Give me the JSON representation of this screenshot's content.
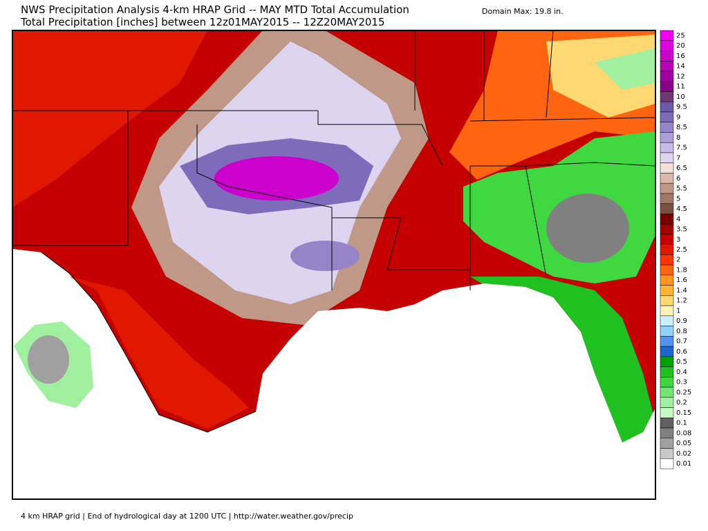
{
  "header": {
    "title": "NWS Precipitation Analysis 4-km HRAP Grid -- MAY MTD Total Accumulation",
    "subtitle": "Total Precipitation [inches] between 12z01MAY2015 -- 12Z20MAY2015",
    "domain_max": "Domain Max:  19.8 in."
  },
  "legend": {
    "items": [
      {
        "label": "25",
        "color": "#f000f0"
      },
      {
        "label": "20",
        "color": "#e000e0"
      },
      {
        "label": "16",
        "color": "#cc00cc"
      },
      {
        "label": "14",
        "color": "#b800b8"
      },
      {
        "label": "12",
        "color": "#a000a0"
      },
      {
        "label": "11",
        "color": "#880088"
      },
      {
        "label": "10",
        "color": "#703870"
      },
      {
        "label": "9.5",
        "color": "#6a5aa8"
      },
      {
        "label": "9",
        "color": "#7e6cba"
      },
      {
        "label": "8.5",
        "color": "#9684c8"
      },
      {
        "label": "8",
        "color": "#ae9ed8"
      },
      {
        "label": "7.5",
        "color": "#c6bae6"
      },
      {
        "label": "7",
        "color": "#ddd4f0"
      },
      {
        "label": "6.5",
        "color": "#f0e0d8"
      },
      {
        "label": "6",
        "color": "#d8b8a8"
      },
      {
        "label": "5.5",
        "color": "#c09888"
      },
      {
        "label": "5",
        "color": "#a07868"
      },
      {
        "label": "4.5",
        "color": "#7a5040"
      },
      {
        "label": "4",
        "color": "#780000"
      },
      {
        "label": "3.5",
        "color": "#a00000"
      },
      {
        "label": "3",
        "color": "#c40000"
      },
      {
        "label": "2.5",
        "color": "#e01800"
      },
      {
        "label": "2",
        "color": "#ff3400"
      },
      {
        "label": "1.8",
        "color": "#ff6410"
      },
      {
        "label": "1.6",
        "color": "#ff9420"
      },
      {
        "label": "1.4",
        "color": "#ffb434"
      },
      {
        "label": "1.2",
        "color": "#ffd874"
      },
      {
        "label": "1",
        "color": "#fff2b4"
      },
      {
        "label": "0.9",
        "color": "#c8f0ff"
      },
      {
        "label": "0.8",
        "color": "#90d0ff"
      },
      {
        "label": "0.7",
        "color": "#5094f0"
      },
      {
        "label": "0.6",
        "color": "#2064d0"
      },
      {
        "label": "0.5",
        "color": "#00a000"
      },
      {
        "label": "0.4",
        "color": "#20c020"
      },
      {
        "label": "0.3",
        "color": "#40d840"
      },
      {
        "label": "0.25",
        "color": "#70e870"
      },
      {
        "label": "0.2",
        "color": "#a0f0a0"
      },
      {
        "label": "0.15",
        "color": "#c4f8c4"
      },
      {
        "label": "0.1",
        "color": "#606060"
      },
      {
        "label": "0.08",
        "color": "#808080"
      },
      {
        "label": "0.05",
        "color": "#a0a0a0"
      },
      {
        "label": "0.02",
        "color": "#c8c8c8"
      },
      {
        "label": "0.01",
        "color": "#ffffff"
      }
    ]
  },
  "footer": "4 km HRAP grid | End of hydrological day at 1200 UTC | http://water.weather.gov/precip"
}
